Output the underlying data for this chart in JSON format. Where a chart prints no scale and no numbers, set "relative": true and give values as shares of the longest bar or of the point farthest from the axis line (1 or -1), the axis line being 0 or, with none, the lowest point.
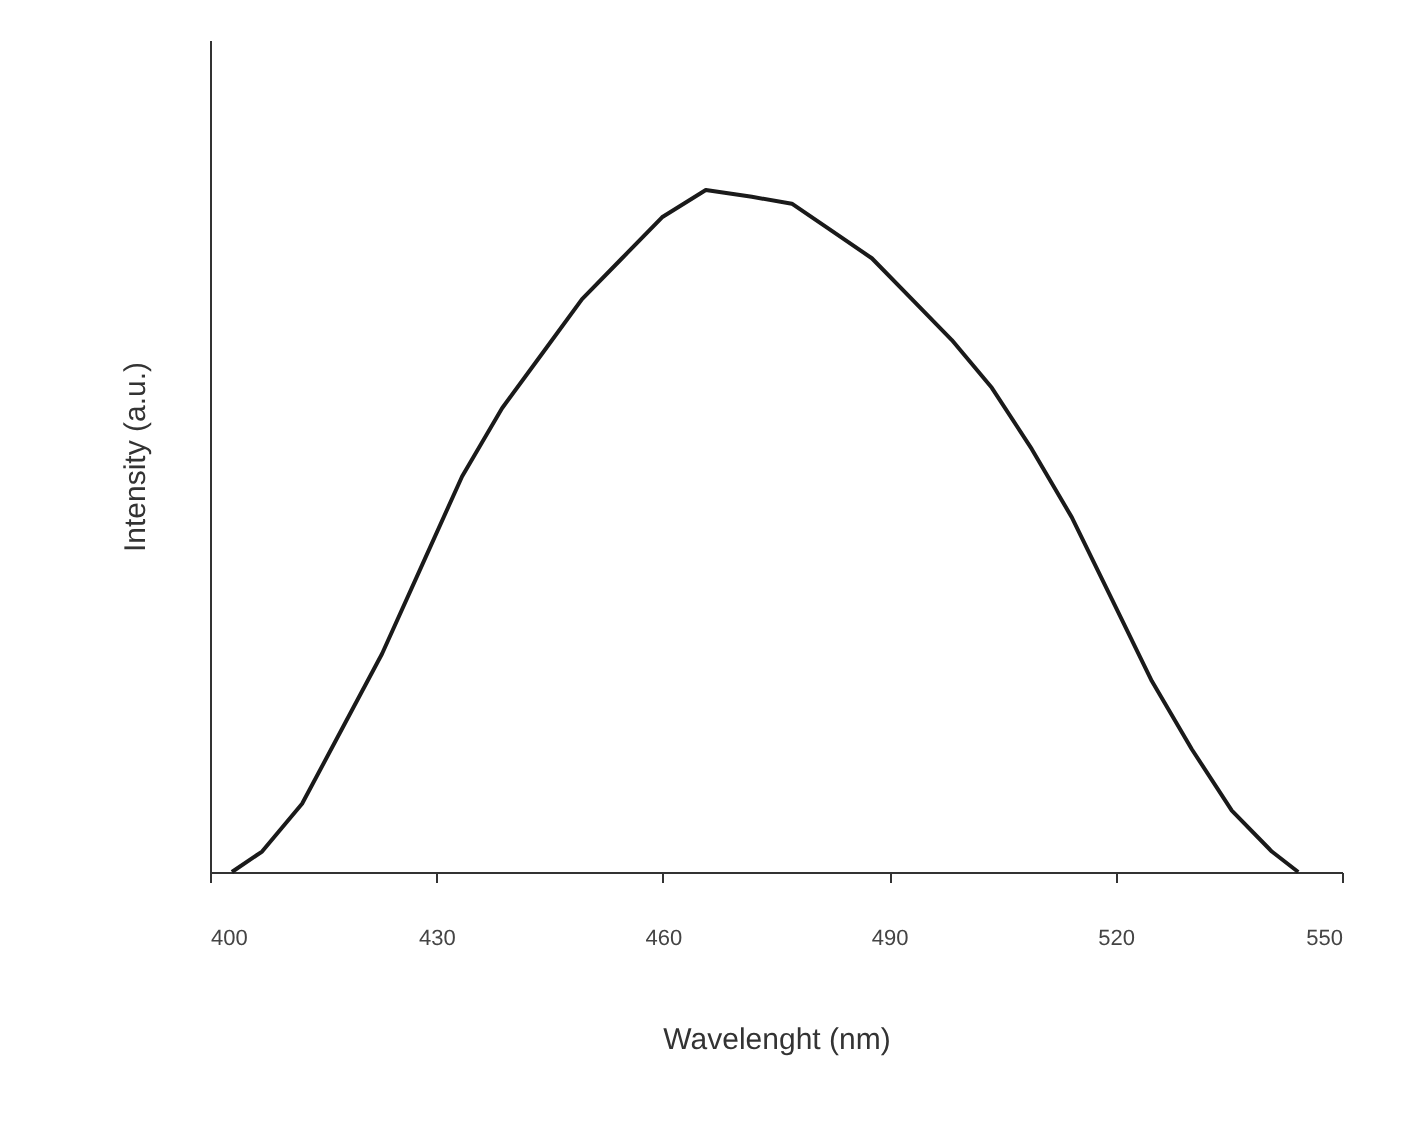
{
  "chart_data": {
    "type": "line",
    "xlabel": "Wavelenght (nm)",
    "ylabel": "Intensity (a.u.)",
    "relative": true,
    "xlim": [
      400,
      550
    ],
    "xticks": [
      400,
      430,
      460,
      490,
      520,
      550
    ],
    "grid": false,
    "marker": "none",
    "line_style": "solid",
    "series": [
      {
        "color": "#1a1a1a",
        "x": [
          402.9,
          406.9,
          412.2,
          417.5,
          422.8,
          428.1,
          433.4,
          438.7,
          444.0,
          449.3,
          454.6,
          459.9,
          465.7,
          471.8,
          477.1,
          482.4,
          487.7,
          493.0,
          498.3,
          503.6,
          508.9,
          514.2,
          519.5,
          524.8,
          530.1,
          535.4,
          540.7,
          544.2
        ],
        "values": [
          0,
          0.03,
          0.1,
          0.21,
          0.32,
          0.45,
          0.58,
          0.68,
          0.76,
          0.84,
          0.9,
          0.96,
          1.0,
          0.99,
          0.98,
          0.94,
          0.9,
          0.84,
          0.78,
          0.71,
          0.62,
          0.52,
          0.4,
          0.28,
          0.18,
          0.09,
          0.03,
          0
        ]
      }
    ]
  }
}
